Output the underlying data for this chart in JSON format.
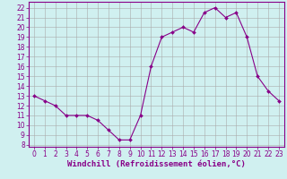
{
  "x": [
    0,
    1,
    2,
    3,
    4,
    5,
    6,
    7,
    8,
    9,
    10,
    11,
    12,
    13,
    14,
    15,
    16,
    17,
    18,
    19,
    20,
    21,
    22,
    23
  ],
  "y": [
    13.0,
    12.5,
    12.0,
    11.0,
    11.0,
    11.0,
    10.5,
    9.5,
    8.5,
    8.5,
    11.0,
    16.0,
    19.0,
    19.5,
    20.0,
    19.5,
    21.5,
    22.0,
    21.0,
    21.5,
    19.0,
    15.0,
    13.5,
    12.5
  ],
  "line_color": "#880088",
  "marker": "D",
  "marker_size": 2,
  "bg_color": "#d0f0f0",
  "grid_color": "#aaaaaa",
  "xlabel": "Windchill (Refroidissement éolien,°C)",
  "xlabel_color": "#880088",
  "ylabel_ticks": [
    8,
    9,
    10,
    11,
    12,
    13,
    14,
    15,
    16,
    17,
    18,
    19,
    20,
    21,
    22
  ],
  "ylim": [
    7.8,
    22.6
  ],
  "xlim": [
    -0.5,
    23.5
  ],
  "xticks": [
    0,
    1,
    2,
    3,
    4,
    5,
    6,
    7,
    8,
    9,
    10,
    11,
    12,
    13,
    14,
    15,
    16,
    17,
    18,
    19,
    20,
    21,
    22,
    23
  ],
  "tick_fontsize": 5.5,
  "xlabel_fontsize": 6.5
}
